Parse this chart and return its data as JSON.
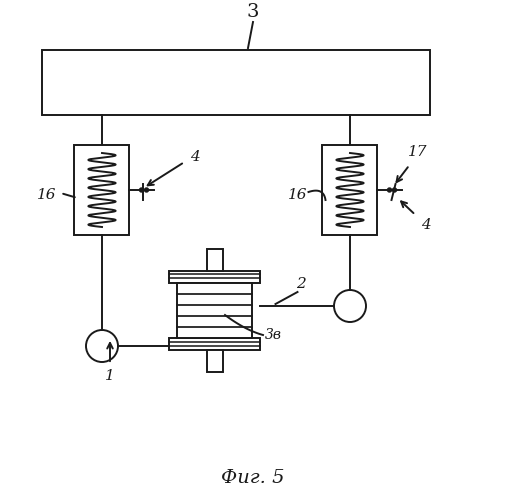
{
  "fig_label": "Фиг. 5",
  "bg_color": "#ffffff",
  "line_color": "#1a1a1a",
  "label_3": "3",
  "label_1": "1",
  "label_2": "2",
  "label_4_left": "4",
  "label_4_right": "4",
  "label_16_left": "16",
  "label_16_right": "16",
  "label_17": "17",
  "label_3v": "3в"
}
